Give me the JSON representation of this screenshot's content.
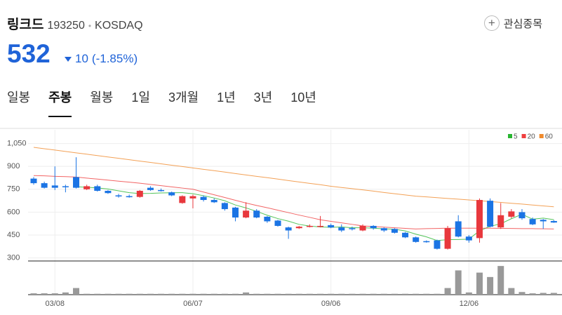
{
  "header": {
    "name": "링크드",
    "code": "193250",
    "market": "KOSDAQ",
    "watch": "관심종목",
    "price": "532",
    "change": "10",
    "change_pct": "(-1.85%)"
  },
  "tabs": [
    "일봉",
    "주봉",
    "월봉",
    "1일",
    "3개월",
    "1년",
    "3년",
    "10년"
  ],
  "chart_data": {
    "type": "candlestick",
    "categories": [
      null,
      null,
      "03/08",
      null,
      null,
      null,
      null,
      null,
      null,
      null,
      null,
      null,
      null,
      null,
      null,
      "06/07",
      null,
      null,
      null,
      null,
      null,
      null,
      null,
      null,
      null,
      null,
      null,
      null,
      "09/06",
      null,
      null,
      null,
      null,
      null,
      null,
      null,
      null,
      null,
      null,
      null,
      null,
      "12/06",
      null,
      null,
      null,
      null,
      null,
      null,
      null,
      null
    ],
    "open": [
      820,
      790,
      775,
      770,
      830,
      750,
      770,
      740,
      710,
      705,
      700,
      760,
      745,
      730,
      660,
      690,
      700,
      680,
      660,
      630,
      565,
      610,
      570,
      545,
      500,
      495,
      505,
      505,
      515,
      500,
      495,
      480,
      510,
      495,
      490,
      465,
      435,
      410,
      415,
      360,
      540,
      440,
      430,
      675,
      500,
      570,
      600,
      555,
      550,
      542
    ],
    "high": [
      830,
      800,
      900,
      780,
      960,
      780,
      780,
      745,
      720,
      715,
      745,
      770,
      755,
      735,
      710,
      715,
      710,
      690,
      665,
      635,
      665,
      620,
      575,
      550,
      505,
      510,
      520,
      575,
      525,
      520,
      505,
      520,
      515,
      500,
      495,
      470,
      440,
      415,
      420,
      510,
      580,
      450,
      690,
      690,
      660,
      620,
      620,
      565,
      555,
      548
    ],
    "low": [
      780,
      755,
      745,
      730,
      755,
      745,
      735,
      720,
      695,
      695,
      695,
      740,
      735,
      705,
      655,
      625,
      670,
      660,
      610,
      540,
      560,
      560,
      530,
      505,
      425,
      490,
      500,
      500,
      495,
      470,
      480,
      475,
      485,
      470,
      460,
      430,
      400,
      400,
      355,
      355,
      435,
      400,
      400,
      500,
      490,
      560,
      550,
      515,
      490,
      530
    ],
    "close": [
      790,
      760,
      760,
      765,
      760,
      770,
      740,
      725,
      705,
      700,
      740,
      745,
      740,
      710,
      705,
      705,
      680,
      665,
      620,
      565,
      610,
      565,
      540,
      510,
      480,
      505,
      510,
      510,
      500,
      480,
      490,
      510,
      495,
      480,
      465,
      435,
      405,
      405,
      360,
      495,
      440,
      415,
      680,
      505,
      580,
      605,
      560,
      520,
      540,
      532
    ],
    "up_color": "#e8383d",
    "down_color": "#1b74e4",
    "series": [
      {
        "name": "5",
        "color": "#28b531",
        "values": [
          null,
          null,
          null,
          null,
          767,
          763,
          759,
          752,
          740,
          728,
          722,
          723,
          726,
          727,
          728,
          721,
          708,
          693,
          675,
          647,
          628,
          605,
          580,
          558,
          541,
          520,
          509,
          503,
          501,
          503,
          498,
          498,
          495,
          491,
          488,
          477,
          456,
          438,
          414,
          420,
          421,
          423,
          478,
          507,
          524,
          557,
          586,
          554,
          561,
          551
        ]
      },
      {
        "name": "20",
        "color": "#ef3e3e",
        "values": [
          840,
          838,
          835,
          833,
          830,
          823,
          817,
          810,
          803,
          797,
          790,
          782,
          774,
          766,
          758,
          750,
          732,
          714,
          696,
          678,
          660,
          644,
          629,
          613,
          597,
          581,
          566,
          550,
          540,
          530,
          520,
          510,
          506,
          502,
          498,
          494,
          490,
          492,
          493,
          495,
          495,
          495,
          495,
          495,
          494,
          493,
          492,
          492,
          491,
          490
        ]
      },
      {
        "name": "60",
        "color": "#f08a2c",
        "values": [
          1025,
          1016,
          1007,
          998,
          989,
          980,
          971,
          962,
          953,
          944,
          935,
          926,
          917,
          908,
          899,
          890,
          881,
          872,
          863,
          853,
          844,
          835,
          826,
          817,
          807,
          798,
          789,
          780,
          770,
          762,
          754,
          746,
          738,
          729,
          721,
          713,
          705,
          700,
          695,
          690,
          685,
          680,
          675,
          670,
          664,
          658,
          653,
          647,
          641,
          635
        ]
      }
    ],
    "ylim": [
      280,
      1140
    ],
    "yticks": [
      {
        "value": 1050,
        "label": "1,050"
      },
      900,
      750,
      600,
      450,
      300
    ],
    "volume": [
      3,
      3,
      3,
      5,
      15,
      2,
      2,
      2,
      2,
      2,
      2,
      2,
      2,
      2,
      2,
      2,
      2,
      2,
      2,
      2,
      5,
      2,
      2,
      2,
      2,
      2,
      2,
      2,
      2,
      2,
      2,
      2,
      2,
      2,
      2,
      2,
      2,
      2,
      2,
      15,
      55,
      5,
      50,
      40,
      65,
      15,
      6,
      3,
      4,
      4
    ],
    "volume_color": "#999999",
    "vlim": [
      0,
      70
    ],
    "grid": true
  }
}
